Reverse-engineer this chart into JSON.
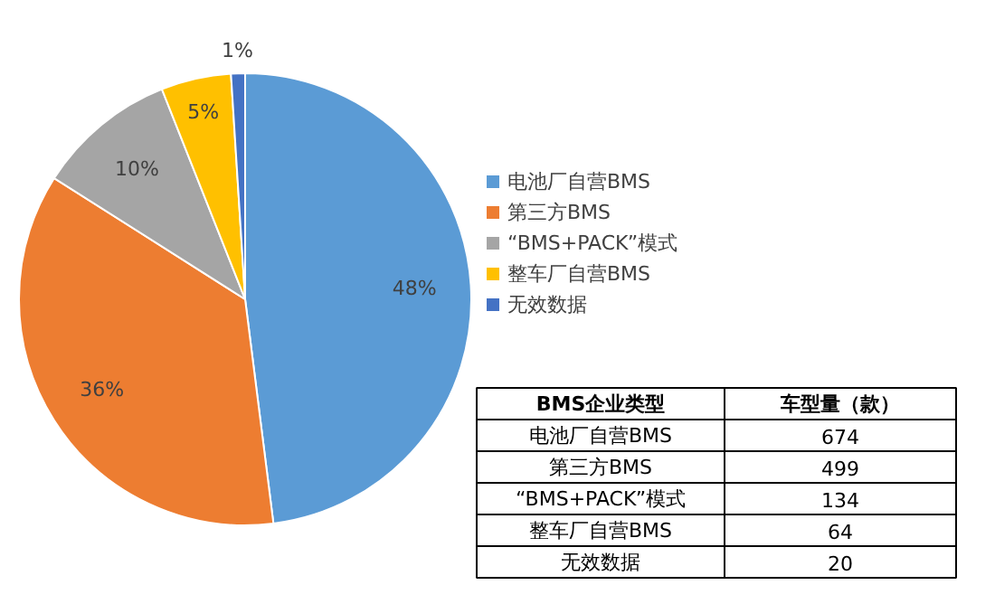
{
  "chart_data": [
    {
      "type": "pie",
      "categories": [
        "电池厂自营BMS",
        "第三方BMS",
        "“BMS+PACK”模式",
        "整车厂自营BMS",
        "无效数据"
      ],
      "values": [
        48,
        36,
        10,
        5,
        1
      ],
      "colors": [
        "#5b9bd5",
        "#ed7d31",
        "#a5a5a5",
        "#ffc000",
        "#4472c4"
      ],
      "value_labels": [
        "48%",
        "36%",
        "10%",
        "5%",
        "1%"
      ],
      "legend": "right"
    },
    {
      "type": "other",
      "categories": [
        "电池厂自营BMS",
        "第三方BMS",
        "“BMS+PACK”模式",
        "整车厂自营BMS",
        "无效数据"
      ],
      "values": [
        674,
        499,
        134,
        64,
        20
      ],
      "annotations": [
        "BMS企业类型",
        "车型量（款）"
      ],
      "data_labels": true
    }
  ]
}
